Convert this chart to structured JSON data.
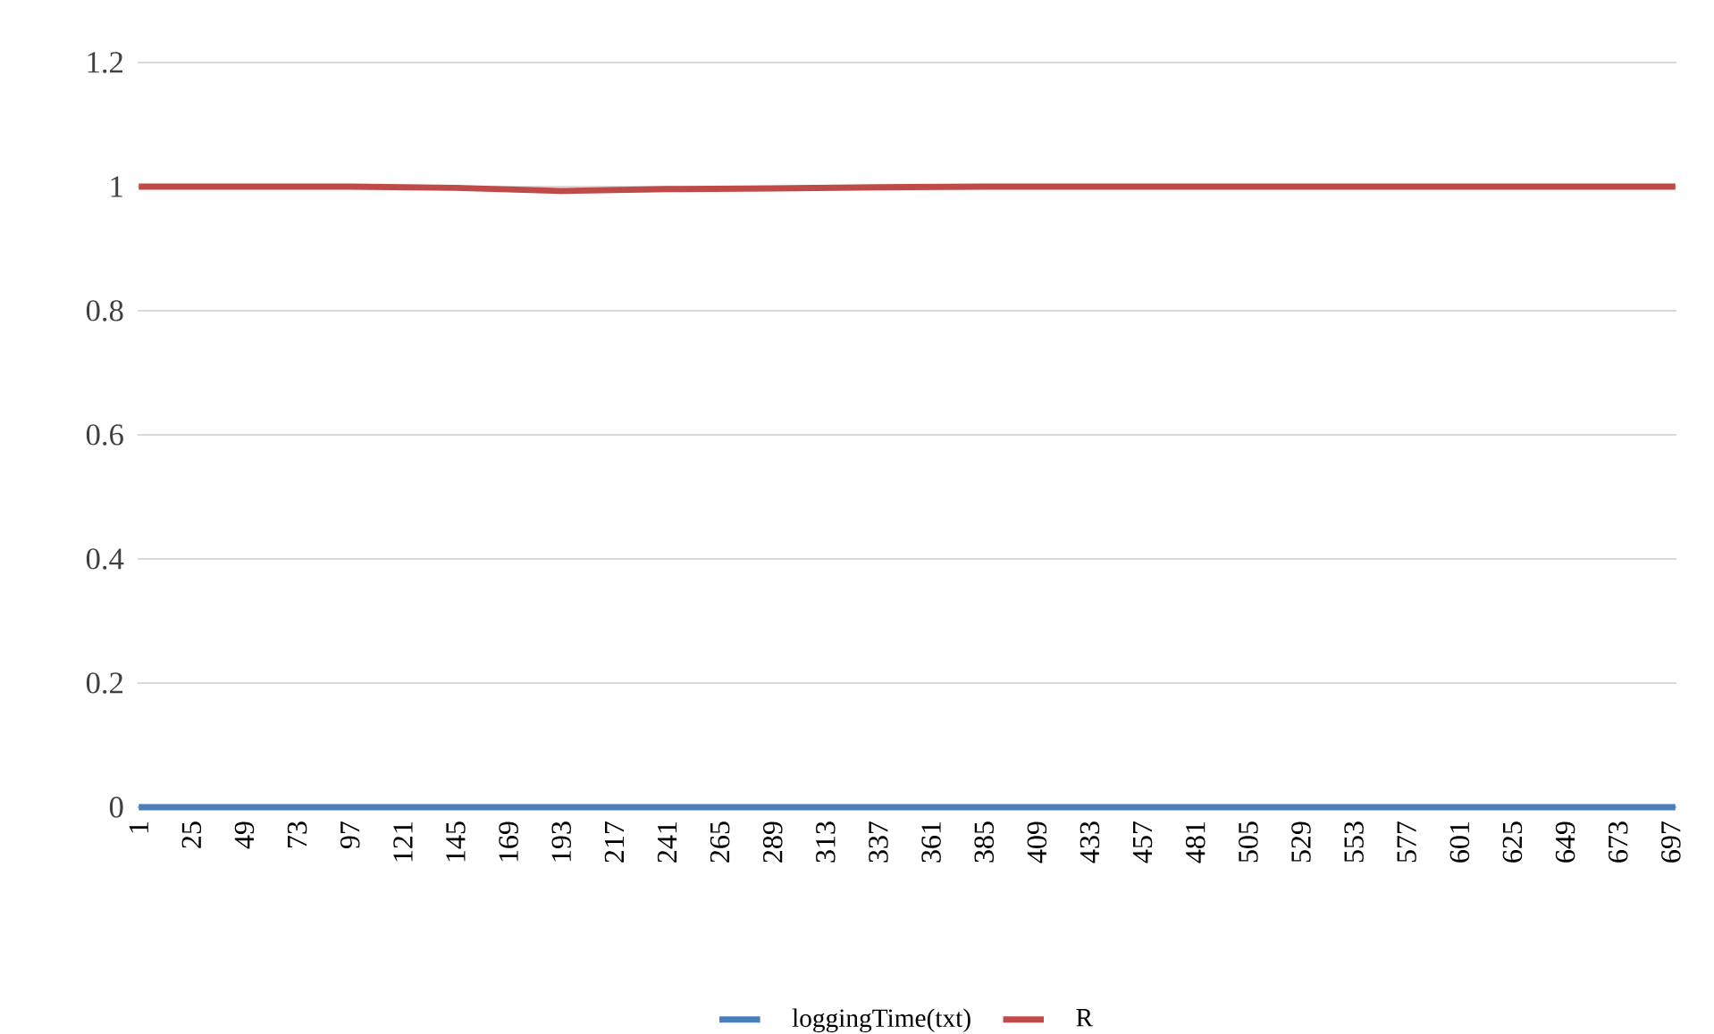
{
  "chart_data": {
    "type": "line",
    "x": [
      1,
      49,
      97,
      145,
      193,
      241,
      289,
      337,
      385,
      433,
      481,
      529,
      577,
      625,
      673,
      699
    ],
    "series": [
      {
        "name": "loggingTime(txt)",
        "color": "#4a7ebb",
        "values": [
          0,
          0,
          0,
          0,
          0,
          0,
          0,
          0,
          0,
          0,
          0,
          0,
          0,
          0,
          0,
          0
        ]
      },
      {
        "name": "R",
        "color": "#be4b48",
        "values": [
          1,
          1,
          1,
          0.998,
          0.993,
          0.996,
          0.997,
          0.999,
          1,
          1,
          1,
          1,
          1,
          1,
          1,
          1
        ]
      }
    ],
    "xlim": [
      0.5,
      699.5
    ],
    "ylim": [
      0,
      1.2
    ],
    "xticks": [
      1,
      25,
      49,
      73,
      97,
      121,
      145,
      169,
      193,
      217,
      241,
      265,
      289,
      313,
      337,
      361,
      385,
      409,
      433,
      457,
      481,
      505,
      529,
      553,
      577,
      601,
      625,
      649,
      673,
      697
    ],
    "yticks": [
      0,
      0.2,
      0.4,
      0.6,
      0.8,
      1,
      1.2
    ],
    "grid": "y",
    "legend": "bottom"
  }
}
